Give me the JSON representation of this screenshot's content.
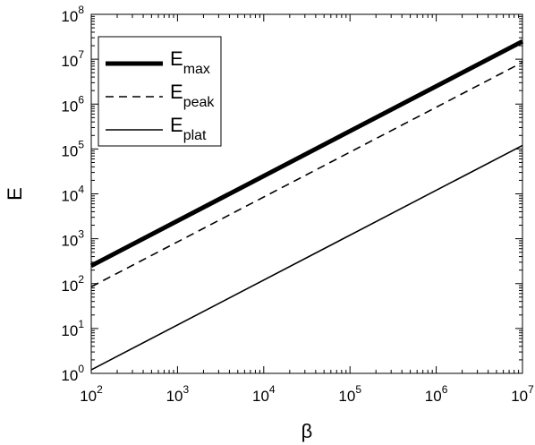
{
  "chart_data": {
    "type": "line",
    "title": "",
    "xlabel": "β",
    "ylabel": "E",
    "xscale": "log",
    "yscale": "log",
    "xlim": [
      100,
      10000000
    ],
    "ylim": [
      1,
      100000000
    ],
    "grid": false,
    "legend_position": "top-left",
    "x_ticks": [
      {
        "base": "10",
        "exp": "2"
      },
      {
        "base": "10",
        "exp": "3"
      },
      {
        "base": "10",
        "exp": "4"
      },
      {
        "base": "10",
        "exp": "5"
      },
      {
        "base": "10",
        "exp": "6"
      },
      {
        "base": "10",
        "exp": "7"
      }
    ],
    "y_ticks": [
      {
        "base": "10",
        "exp": "0"
      },
      {
        "base": "10",
        "exp": "1"
      },
      {
        "base": "10",
        "exp": "2"
      },
      {
        "base": "10",
        "exp": "3"
      },
      {
        "base": "10",
        "exp": "4"
      },
      {
        "base": "10",
        "exp": "5"
      },
      {
        "base": "10",
        "exp": "6"
      },
      {
        "base": "10",
        "exp": "7"
      },
      {
        "base": "10",
        "exp": "8"
      }
    ],
    "series": [
      {
        "name_main": "E",
        "name_sub": "max",
        "style": "thick-solid",
        "x": [
          100,
          10000000
        ],
        "y": [
          250,
          25000000
        ]
      },
      {
        "name_main": "E",
        "name_sub": "peak",
        "style": "dashed",
        "x": [
          100,
          10000000
        ],
        "y": [
          85,
          8500000
        ]
      },
      {
        "name_main": "E",
        "name_sub": "plat",
        "style": "thin-solid",
        "x": [
          100,
          10000000
        ],
        "y": [
          1.2,
          120000
        ]
      }
    ]
  }
}
